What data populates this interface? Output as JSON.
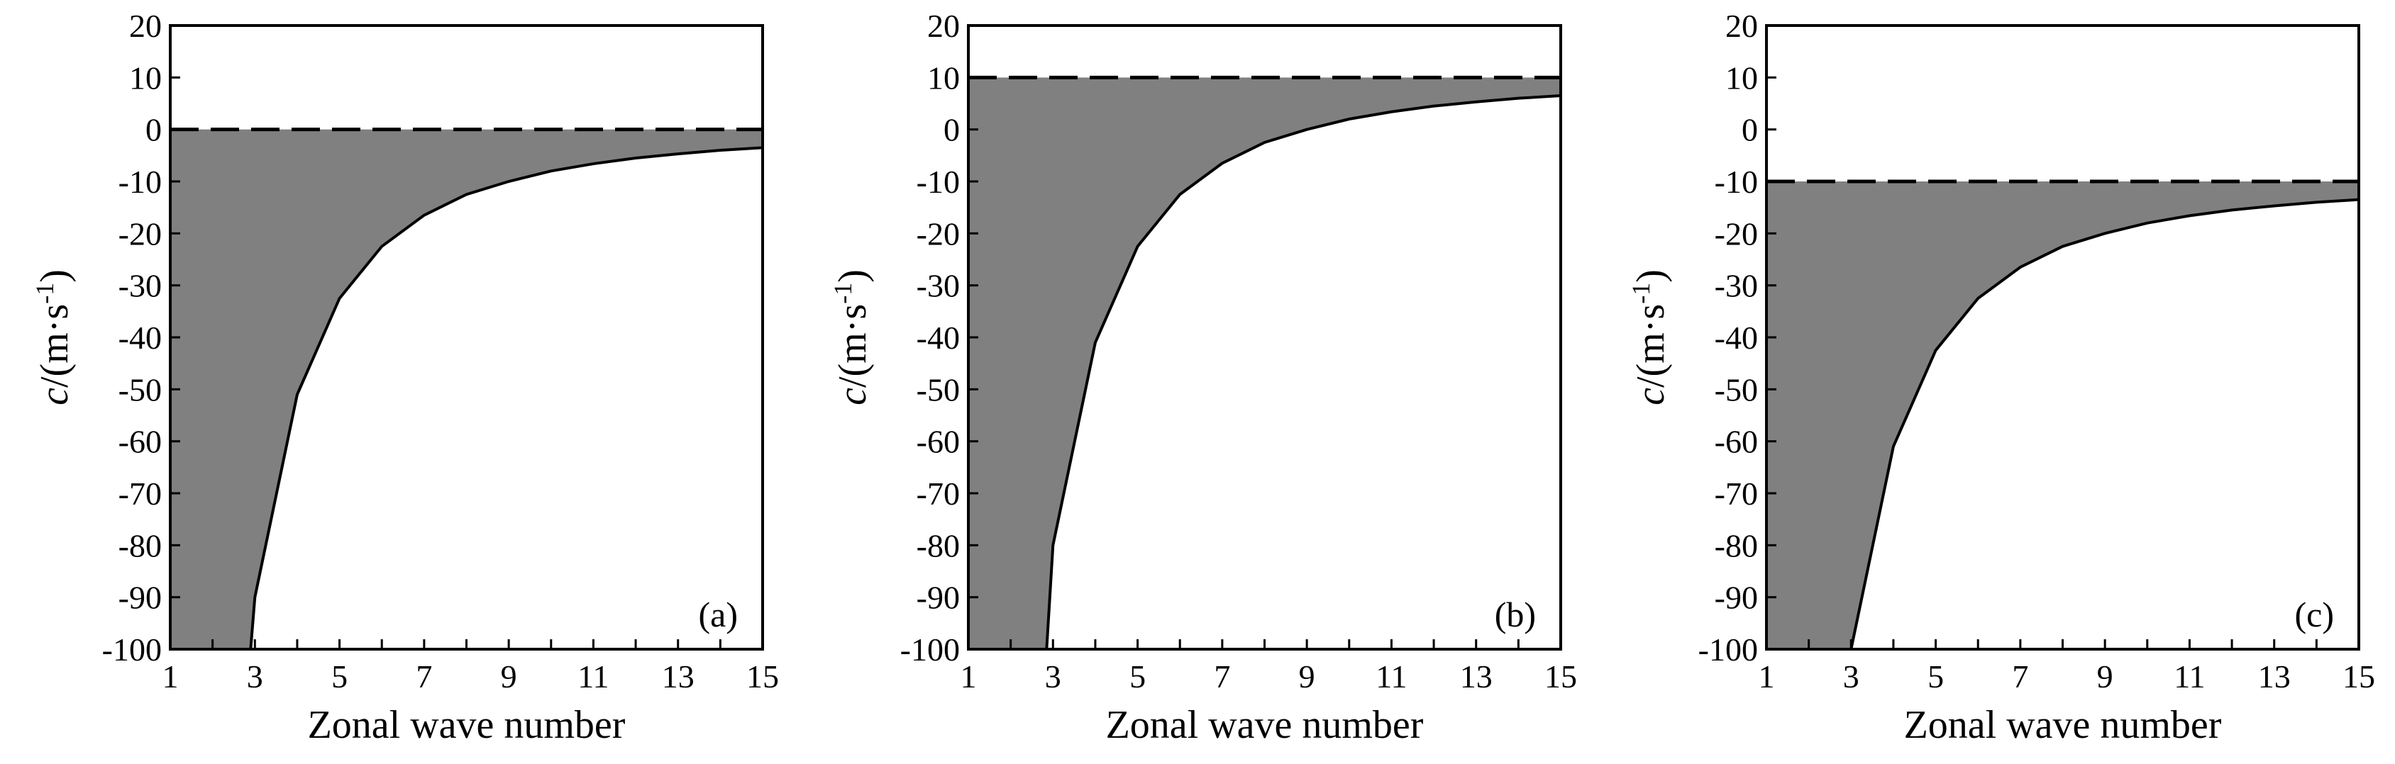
{
  "colors": {
    "fill": "#808080",
    "line": "#000000",
    "background": "#ffffff"
  },
  "chart_data": [
    {
      "type": "area",
      "panel_label": "(a)",
      "xlabel": "Zonal wave number",
      "ylabel": "c/(m·s-1)",
      "ylabel_parts": {
        "var": "c",
        "rest": "/(m·s",
        "sup": "-1",
        "close": ")"
      },
      "xlim": [
        1,
        15
      ],
      "ylim": [
        -100,
        20
      ],
      "x_ticks": [
        1,
        3,
        5,
        7,
        9,
        11,
        13,
        15
      ],
      "y_ticks": [
        20,
        10,
        0,
        -10,
        -20,
        -30,
        -40,
        -50,
        -60,
        -70,
        -80,
        -90,
        -100
      ],
      "dashed_line_y": 0,
      "shading": "between dashed line and curve, gray",
      "series": [
        {
          "x": [
            2.9,
            3,
            4,
            5,
            6,
            7,
            8,
            9,
            10,
            11,
            12,
            13,
            14,
            15
          ],
          "y": [
            -100,
            -90,
            -51,
            -32.5,
            -22.5,
            -16.5,
            -12.5,
            -10,
            -8,
            -6.6,
            -5.5,
            -4.7,
            -4,
            -3.5
          ]
        }
      ]
    },
    {
      "type": "area",
      "panel_label": "(b)",
      "xlabel": "Zonal wave number",
      "ylabel": "c/(m·s-1)",
      "ylabel_parts": {
        "var": "c",
        "rest": "/(m·s",
        "sup": "-1",
        "close": ")"
      },
      "xlim": [
        1,
        15
      ],
      "ylim": [
        -100,
        20
      ],
      "x_ticks": [
        1,
        3,
        5,
        7,
        9,
        11,
        13,
        15
      ],
      "y_ticks": [
        20,
        10,
        0,
        -10,
        -20,
        -30,
        -40,
        -50,
        -60,
        -70,
        -80,
        -90,
        -100
      ],
      "dashed_line_y": 10,
      "shading": "between dashed line and curve, gray",
      "series": [
        {
          "x": [
            2.85,
            3,
            4,
            5,
            6,
            7,
            8,
            9,
            10,
            11,
            12,
            13,
            14,
            15
          ],
          "y": [
            -100,
            -80,
            -41,
            -22.5,
            -12.5,
            -6.5,
            -2.5,
            0,
            2,
            3.4,
            4.5,
            5.3,
            6,
            6.5
          ]
        }
      ]
    },
    {
      "type": "area",
      "panel_label": "(c)",
      "xlabel": "Zonal wave number",
      "ylabel": "c/(m·s-1)",
      "ylabel_parts": {
        "var": "c",
        "rest": "/(m·s",
        "sup": "-1",
        "close": ")"
      },
      "xlim": [
        1,
        15
      ],
      "ylim": [
        -100,
        20
      ],
      "x_ticks": [
        1,
        3,
        5,
        7,
        9,
        11,
        13,
        15
      ],
      "y_ticks": [
        20,
        10,
        0,
        -10,
        -20,
        -30,
        -40,
        -50,
        -60,
        -70,
        -80,
        -90,
        -100
      ],
      "dashed_line_y": -10,
      "shading": "between dashed line and curve, gray",
      "series": [
        {
          "x": [
            3,
            4,
            5,
            6,
            7,
            8,
            9,
            10,
            11,
            12,
            13,
            14,
            15
          ],
          "y": [
            -100,
            -61,
            -42.5,
            -32.5,
            -26.5,
            -22.5,
            -20,
            -18,
            -16.6,
            -15.5,
            -14.7,
            -14,
            -13.5
          ]
        }
      ]
    }
  ]
}
